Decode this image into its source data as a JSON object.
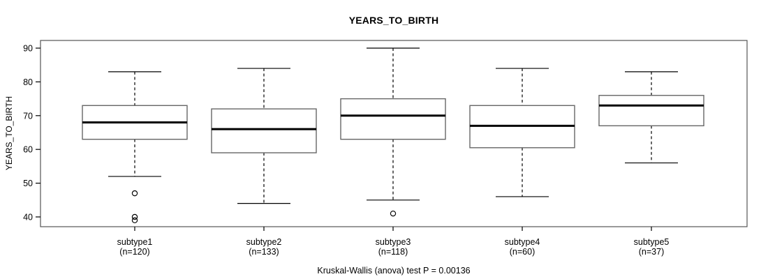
{
  "chart_data": {
    "type": "boxplot",
    "title": "YEARS_TO_BIRTH",
    "ylabel": "YEARS_TO_BIRTH",
    "xlabel": "",
    "note": "Kruskal-Wallis (anova) test P = 0.00136",
    "yticks": [
      40,
      50,
      60,
      70,
      80,
      90
    ],
    "ylim": [
      37,
      92.5
    ],
    "grid": false,
    "legend": "none",
    "groups": [
      {
        "label": "subtype1",
        "sublabel": "(n=120)",
        "n": 120,
        "whisker_low": 52,
        "q1": 63,
        "median": 68,
        "q3": 73,
        "whisker_high": 83,
        "outliers": [
          47,
          40,
          39
        ]
      },
      {
        "label": "subtype2",
        "sublabel": "(n=133)",
        "n": 133,
        "whisker_low": 44,
        "q1": 59,
        "median": 66,
        "q3": 72,
        "whisker_high": 84,
        "outliers": []
      },
      {
        "label": "subtype3",
        "sublabel": "(n=118)",
        "n": 118,
        "whisker_low": 45,
        "q1": 63,
        "median": 70,
        "q3": 75,
        "whisker_high": 90,
        "outliers": [
          41
        ]
      },
      {
        "label": "subtype4",
        "sublabel": "(n=60)",
        "n": 60,
        "whisker_low": 46,
        "q1": 60.5,
        "median": 67,
        "q3": 73,
        "whisker_high": 84,
        "outliers": []
      },
      {
        "label": "subtype5",
        "sublabel": "(n=37)",
        "n": 37,
        "whisker_low": 56,
        "q1": 67,
        "median": 73,
        "q3": 76,
        "whisker_high": 83,
        "outliers": []
      }
    ],
    "colors": {
      "line": "#000000",
      "box_border": "#666666",
      "frame": "#555555",
      "fill": "#ffffff"
    }
  }
}
